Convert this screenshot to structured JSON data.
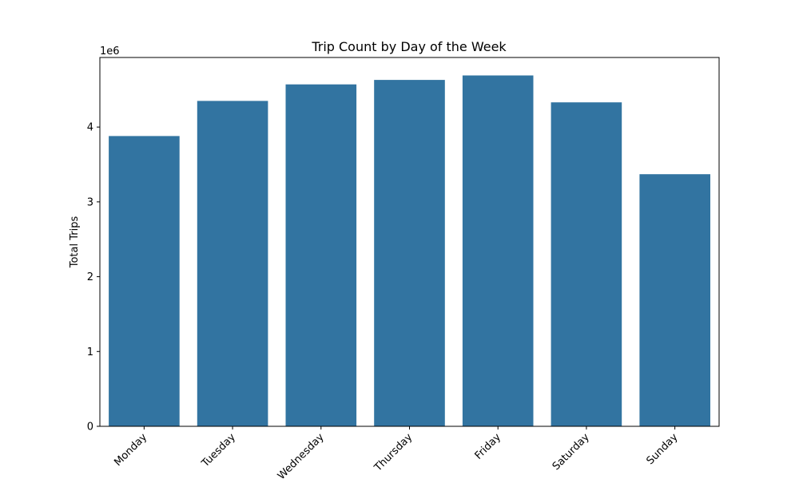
{
  "chart_data": {
    "type": "bar",
    "title": "Trip Count by Day of the Week",
    "xlabel": "",
    "ylabel": "Total Trips",
    "scale_label": "1e6",
    "categories": [
      "Monday",
      "Tuesday",
      "Wednesday",
      "Thursday",
      "Friday",
      "Saturday",
      "Sunday"
    ],
    "values": [
      3880000,
      4350000,
      4570000,
      4630000,
      4690000,
      4330000,
      3370000
    ],
    "yticks": [
      0,
      1,
      2,
      3,
      4
    ],
    "ylim": [
      0,
      4930000
    ],
    "bar_color": "#3274a1",
    "grid": false,
    "legend": "none"
  }
}
